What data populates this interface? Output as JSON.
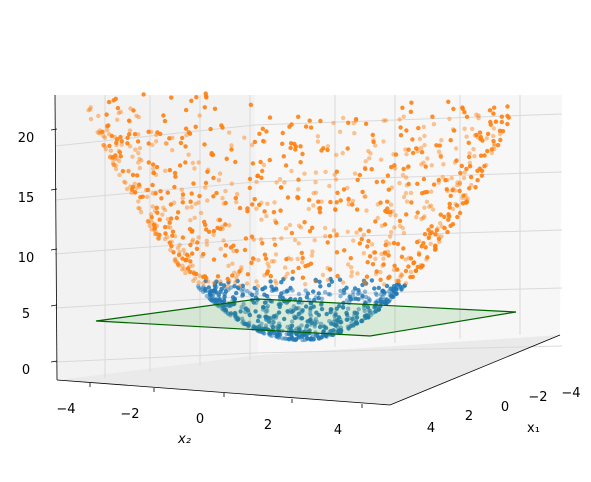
{
  "chart_data": {
    "type": "scatter",
    "projection": "3d",
    "title": "",
    "xlabel": "x₁",
    "ylabel": "x₂",
    "zlabel": "",
    "xlim": [
      -5,
      5
    ],
    "ylim": [
      -5,
      5
    ],
    "zlim": [
      0,
      23
    ],
    "x_ticks": [
      "−4",
      "−2",
      "0",
      "2",
      "4"
    ],
    "y_ticks": [
      "−4",
      "−2",
      "0",
      "2",
      "4"
    ],
    "z_ticks": [
      "0",
      "5",
      "10",
      "15",
      "20"
    ],
    "grid": true,
    "legend": "none",
    "surface": "paraboloid z = x₁² + x₂²",
    "series": [
      {
        "color": "#1f77b4",
        "region": "inside the plane (z below plane)",
        "approx_points": 600
      },
      {
        "color": "#ff7f0e",
        "region": "above the plane",
        "approx_points": 900
      }
    ],
    "plane": {
      "z": 5,
      "edge_color": "#006400",
      "face_color": "#2ca02c",
      "opacity": 0.15
    }
  }
}
